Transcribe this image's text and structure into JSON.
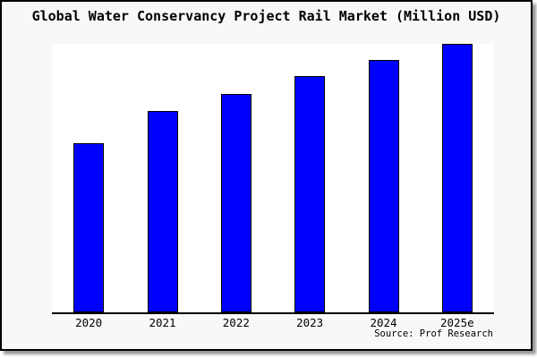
{
  "chart_data": {
    "type": "bar",
    "title": "Global Water Conservancy Project Rail Market (Million USD)",
    "categories": [
      "2020",
      "2021",
      "2022",
      "2023",
      "2024",
      "2025e"
    ],
    "values": [
      63,
      75,
      81.5,
      88,
      94,
      100
    ],
    "values_note": "no y-axis ticks or gridlines shown; values are relative bar heights with 2025e = 100",
    "xlabel": "",
    "ylabel": "",
    "grid": false,
    "legend": false,
    "ylim": [
      0,
      100
    ],
    "bar_color": "#0000ff",
    "bar_border_color": "#000000",
    "plot_background": "#ffffff",
    "canvas_background": "#f8f8f7",
    "source_label": "Source: Prof Research"
  }
}
